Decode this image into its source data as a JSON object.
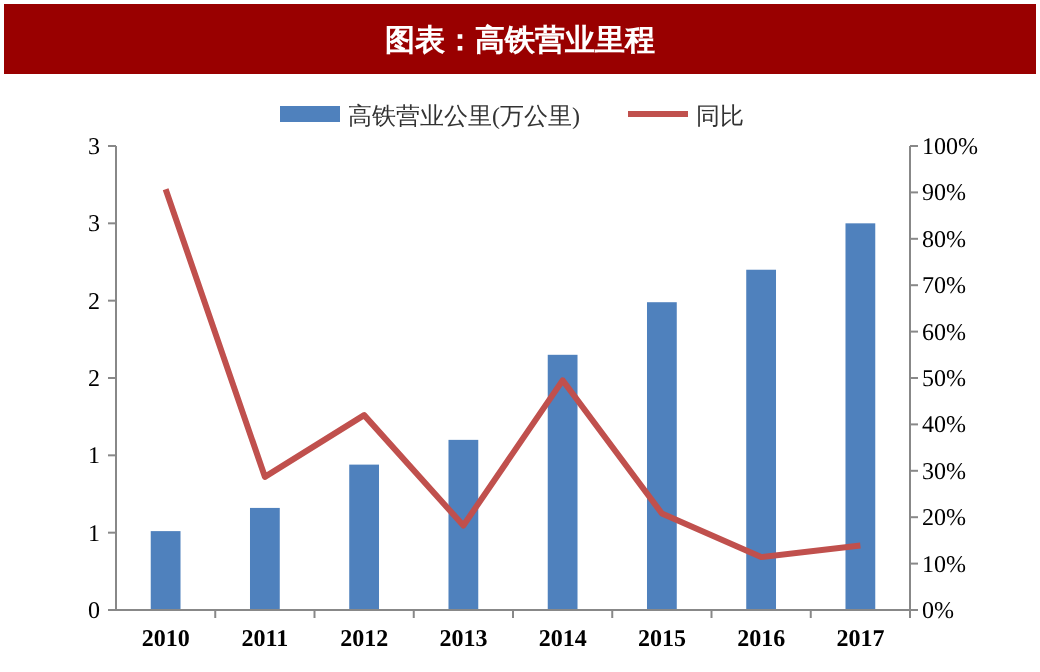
{
  "chart_data": {
    "type": "bar",
    "title": "图表：高铁营业里程",
    "categories": [
      "2010",
      "2011",
      "2012",
      "2013",
      "2014",
      "2015",
      "2016",
      "2017"
    ],
    "series": [
      {
        "name": "高铁营业公里(万公里)",
        "color": "#4f81bd",
        "values": [
          0.51,
          0.66,
          0.94,
          1.1,
          1.65,
          1.99,
          2.2,
          2.5
        ]
      },
      {
        "name": "同比",
        "type": "line",
        "axis": "y2",
        "color": "#c0504d",
        "values": [
          90.7,
          28.7,
          42,
          18.2,
          49.5,
          20.8,
          11.4,
          13.9
        ]
      }
    ],
    "ylim": [
      0,
      3
    ],
    "yticks": [
      0,
      {
        "value": 0.5,
        "label": "1"
      },
      1,
      {
        "value": 1.5,
        "label": "2"
      },
      2,
      {
        "value": 2.5,
        "label": "3"
      },
      3
    ],
    "y2lim": [
      0,
      100
    ],
    "y2ticks": [
      {
        "value": 0,
        "label": "0%"
      },
      {
        "value": 10,
        "label": "10%"
      },
      {
        "value": 20,
        "label": "20%"
      },
      {
        "value": 30,
        "label": "30%"
      },
      {
        "value": 40,
        "label": "40%"
      },
      {
        "value": 50,
        "label": "50%"
      },
      {
        "value": 60,
        "label": "60%"
      },
      {
        "value": 70,
        "label": "70%"
      },
      {
        "value": 80,
        "label": "80%"
      },
      {
        "value": 90,
        "label": "90%"
      },
      {
        "value": 100,
        "label": "100%"
      }
    ],
    "legend": "top",
    "grid": false,
    "marker": "none"
  }
}
